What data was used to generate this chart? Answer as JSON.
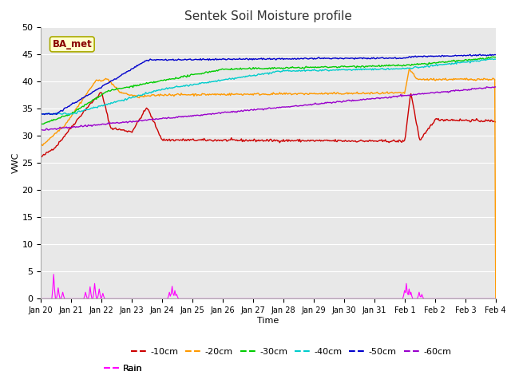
{
  "title": "Sentek Soil Moisture profile",
  "xlabel": "Time",
  "ylabel": "VWC",
  "legend_label": "BA_met",
  "ylim": [
    0,
    50
  ],
  "yticks": [
    0,
    5,
    10,
    15,
    20,
    25,
    30,
    35,
    40,
    45,
    50
  ],
  "bg_color": "#e8e8e8",
  "fig_bg_color": "#ffffff",
  "colors": {
    "-10cm": "#cc0000",
    "-20cm": "#ff9900",
    "-30cm": "#00cc00",
    "-40cm": "#00cccc",
    "-50cm": "#0000cc",
    "-60cm": "#9900cc",
    "Rain": "#ff00ff"
  },
  "tick_labels": [
    "Jan 20",
    "Jan 21",
    "Jan 22",
    "Jan 23",
    "Jan 24",
    "Jan 25",
    "Jan 26",
    "Jan 27",
    "Jan 28",
    "Jan 29",
    "Jan 30",
    "Jan 31",
    "Feb 1",
    "Feb 2",
    "Feb 3",
    "Feb 4"
  ],
  "n_points": 500
}
